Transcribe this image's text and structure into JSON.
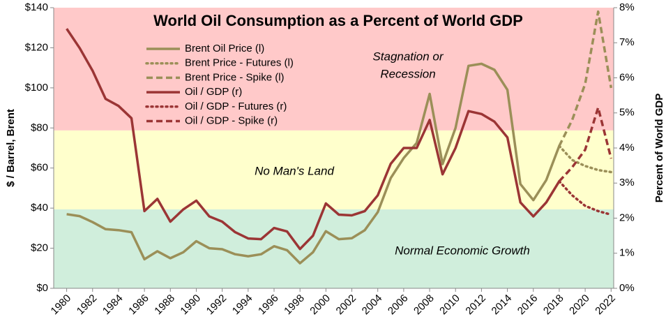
{
  "chart_data": {
    "type": "line",
    "title": "World Oil Consumption as a Percent of World GDP",
    "y_label": "$ / Barrel, Brent",
    "y2_label": "Percent of World GDP",
    "x": [
      1980,
      1981,
      1982,
      1983,
      1984,
      1985,
      1986,
      1987,
      1988,
      1989,
      1990,
      1991,
      1992,
      1993,
      1994,
      1995,
      1996,
      1997,
      1998,
      1999,
      2000,
      2001,
      2002,
      2003,
      2004,
      2005,
      2006,
      2007,
      2008,
      2009,
      2010,
      2011,
      2012,
      2013,
      2014,
      2015,
      2016,
      2017,
      2018,
      2019,
      2020,
      2021,
      2022
    ],
    "xlim": [
      1979,
      2022.2
    ],
    "xticks": [
      1980,
      1982,
      1984,
      1986,
      1988,
      1990,
      1992,
      1994,
      1996,
      1998,
      2000,
      2002,
      2004,
      2006,
      2008,
      2010,
      2012,
      2014,
      2016,
      2018,
      2020,
      2022
    ],
    "ylim": [
      0,
      140
    ],
    "yticks": [
      {
        "value": 0,
        "label": "$0"
      },
      {
        "value": 20,
        "label": "$20"
      },
      {
        "value": 40,
        "label": "$40"
      },
      {
        "value": 60,
        "label": "$60"
      },
      {
        "value": 80,
        "label": "$80"
      },
      {
        "value": 100,
        "label": "$100"
      },
      {
        "value": 120,
        "label": "$120"
      },
      {
        "value": 140,
        "label": "$140"
      }
    ],
    "y2lim": [
      0,
      8
    ],
    "y2ticks": [
      {
        "value": 0,
        "label": "0%"
      },
      {
        "value": 1,
        "label": "1%"
      },
      {
        "value": 2,
        "label": "2%"
      },
      {
        "value": 3,
        "label": "3%"
      },
      {
        "value": 4,
        "label": "4%"
      },
      {
        "value": 5,
        "label": "5%"
      },
      {
        "value": 6,
        "label": "6%"
      },
      {
        "value": 7,
        "label": "7%"
      },
      {
        "value": 8,
        "label": "8%"
      }
    ],
    "zones": [
      {
        "label": [
          "Stagnation or",
          "Recession"
        ],
        "from": 4.5,
        "to": 8,
        "color": "#ffc9c9"
      },
      {
        "label": [
          "No Man's Land"
        ],
        "from": 2.25,
        "to": 4.5,
        "color": "#ffffcc"
      },
      {
        "label": [
          "Normal Economic Growth"
        ],
        "from": 0,
        "to": 2.25,
        "color": "#d0eedc"
      }
    ],
    "series": [
      {
        "name": "Brent Oil Price (l)",
        "color": "#9b8f58",
        "dash": "solid",
        "axis": "y",
        "values": [
          37,
          36,
          33,
          29.5,
          29,
          28,
          14.5,
          18.5,
          15,
          18,
          23.5,
          20,
          19.5,
          17,
          16,
          17,
          21,
          19,
          12.5,
          18,
          28.5,
          24.5,
          25,
          29,
          38,
          55,
          65,
          72.5,
          97,
          62,
          80,
          111,
          112,
          109,
          99,
          52,
          44,
          54,
          71,
          null,
          null,
          null,
          null
        ]
      },
      {
        "name": "Brent Price - Futures (l)",
        "color": "#9b8f58",
        "dash": "dotted",
        "axis": "y",
        "values": [
          null,
          null,
          null,
          null,
          null,
          null,
          null,
          null,
          null,
          null,
          null,
          null,
          null,
          null,
          null,
          null,
          null,
          null,
          null,
          null,
          null,
          null,
          null,
          null,
          null,
          null,
          null,
          null,
          null,
          null,
          null,
          null,
          null,
          null,
          null,
          null,
          null,
          null,
          71,
          64,
          61,
          59,
          58
        ]
      },
      {
        "name": "Brent Price - Spike (l)",
        "color": "#9b8f58",
        "dash": "dashed",
        "axis": "y",
        "values": [
          null,
          null,
          null,
          null,
          null,
          null,
          null,
          null,
          null,
          null,
          null,
          null,
          null,
          null,
          null,
          null,
          null,
          null,
          null,
          null,
          null,
          null,
          null,
          null,
          null,
          null,
          null,
          null,
          null,
          null,
          null,
          null,
          null,
          null,
          null,
          null,
          null,
          null,
          71,
          84,
          102,
          138,
          100
        ]
      },
      {
        "name": "Oil / GDP (r)",
        "color": "#9b3535",
        "dash": "solid",
        "axis": "y2",
        "values": [
          7.4,
          6.85,
          6.2,
          5.4,
          5.2,
          4.85,
          2.2,
          2.55,
          1.9,
          2.25,
          2.5,
          2.05,
          1.9,
          1.6,
          1.42,
          1.4,
          1.72,
          1.62,
          1.12,
          1.5,
          2.42,
          2.1,
          2.08,
          2.2,
          2.65,
          3.55,
          4,
          4,
          4.8,
          3.25,
          4,
          5.05,
          4.97,
          4.75,
          4.3,
          2.45,
          2.05,
          2.45,
          3.05,
          null,
          null,
          null,
          null
        ]
      },
      {
        "name": "Oil / GDP - Futures (r)",
        "color": "#9b3535",
        "dash": "dotted",
        "axis": "y2",
        "values": [
          null,
          null,
          null,
          null,
          null,
          null,
          null,
          null,
          null,
          null,
          null,
          null,
          null,
          null,
          null,
          null,
          null,
          null,
          null,
          null,
          null,
          null,
          null,
          null,
          null,
          null,
          null,
          null,
          null,
          null,
          null,
          null,
          null,
          null,
          null,
          null,
          null,
          null,
          3.05,
          2.65,
          2.35,
          2.2,
          2.1
        ]
      },
      {
        "name": "Oil / GDP - Spike (r)",
        "color": "#9b3535",
        "dash": "dashed",
        "axis": "y2",
        "values": [
          null,
          null,
          null,
          null,
          null,
          null,
          null,
          null,
          null,
          null,
          null,
          null,
          null,
          null,
          null,
          null,
          null,
          null,
          null,
          null,
          null,
          null,
          null,
          null,
          null,
          null,
          null,
          null,
          null,
          null,
          null,
          null,
          null,
          null,
          null,
          null,
          null,
          null,
          3.05,
          3.45,
          3.95,
          5.15,
          3.7
        ]
      }
    ]
  }
}
